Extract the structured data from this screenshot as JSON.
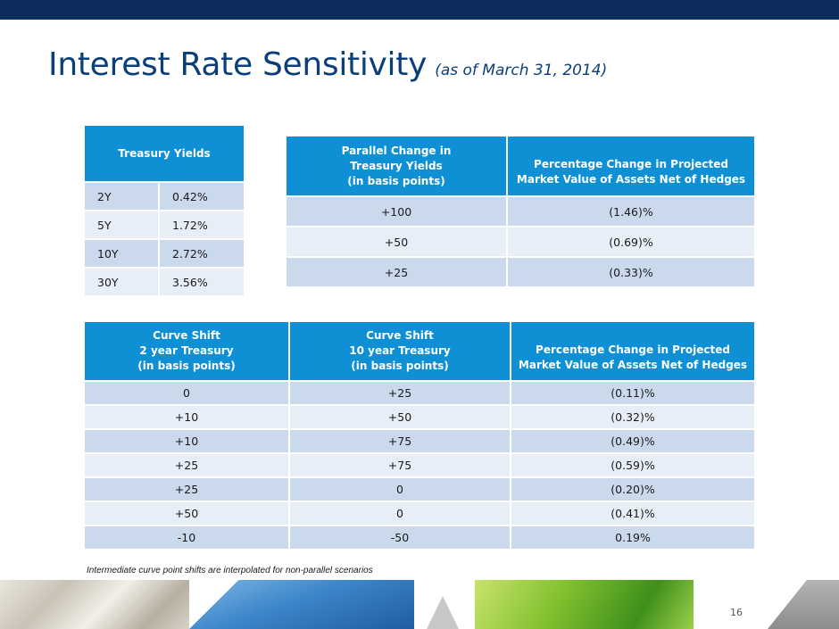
{
  "title": {
    "main": "Interest Rate Sensitivity",
    "sub": "(as of March 31, 2014)"
  },
  "treasury_yields": {
    "header": "Treasury Yields",
    "rows": [
      {
        "term": "2Y",
        "yield": "0.42%"
      },
      {
        "term": "5Y",
        "yield": "1.72%"
      },
      {
        "term": "10Y",
        "yield": "2.72%"
      },
      {
        "term": "30Y",
        "yield": "3.56%"
      }
    ]
  },
  "parallel_table": {
    "headers": {
      "change_line1": "Parallel Change in",
      "change_line2": "Treasury Yields",
      "change_line3": "(in basis points)",
      "pct_line1": "Percentage Change in Projected",
      "pct_line2": "Market Value of Assets Net of Hedges"
    },
    "rows": [
      {
        "change": "+100",
        "pct": "(1.46)%"
      },
      {
        "change": "+50",
        "pct": "(0.69)%"
      },
      {
        "change": "+25",
        "pct": "(0.33)%"
      }
    ]
  },
  "curve_table": {
    "headers": {
      "two_line1": "Curve Shift",
      "two_line2": "2 year Treasury",
      "two_line3": "(in basis points)",
      "ten_line1": "Curve Shift",
      "ten_line2": "10 year Treasury",
      "ten_line3": "(in basis points)",
      "pct_line1": "Percentage Change in Projected",
      "pct_line2": "Market Value of Assets Net of Hedges"
    },
    "rows": [
      {
        "two": "0",
        "ten": "+25",
        "pct": "(0.11)%"
      },
      {
        "two": "+10",
        "ten": "+50",
        "pct": "(0.32)%"
      },
      {
        "two": "+10",
        "ten": "+75",
        "pct": "(0.49)%"
      },
      {
        "two": "+25",
        "ten": "+75",
        "pct": "(0.59)%"
      },
      {
        "two": "+25",
        "ten": "0",
        "pct": "(0.20)%"
      },
      {
        "two": "+50",
        "ten": "0",
        "pct": "(0.41)%"
      },
      {
        "two": "-10",
        "ten": "-50",
        "pct": "0.19%"
      }
    ]
  },
  "footnote": "Intermediate curve point shifts are interpolated for non-parallel scenarios",
  "page_number": "16",
  "colors": {
    "top_bar": "#0d2e5c",
    "title": "#0b3f7a",
    "header_fill": "#0f8fd4",
    "row_dark": "#cbd9ec",
    "row_light": "#e8eef8"
  }
}
